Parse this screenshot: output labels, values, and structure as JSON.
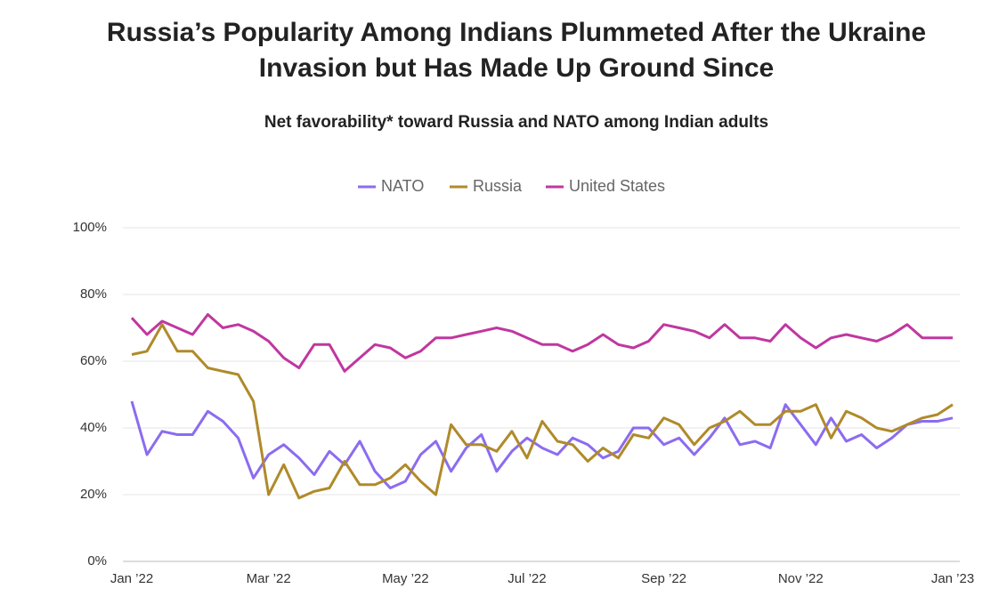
{
  "chart_data": {
    "type": "line",
    "title": [
      "Russia’s Popularity Among Indians Plummeted After the Ukraine",
      "Invasion but Has Made Up Ground Since"
    ],
    "subtitle": "Net favorability* toward Russia and NATO among Indian adults",
    "categories": [
      "Jan ’22",
      null,
      null,
      null,
      null,
      null,
      null,
      null,
      null,
      "Mar ’22",
      null,
      null,
      null,
      null,
      null,
      null,
      null,
      null,
      "May ’22",
      null,
      null,
      null,
      null,
      null,
      null,
      null,
      "Jul ’22",
      null,
      null,
      null,
      null,
      null,
      null,
      null,
      null,
      "Sep ’22",
      null,
      null,
      null,
      null,
      null,
      null,
      null,
      null,
      "Nov ’22",
      null,
      null,
      null,
      null,
      null,
      null,
      null,
      null,
      null,
      "Jan ’23"
    ],
    "series": [
      {
        "name": "NATO",
        "color": "#8b6cf0",
        "values": [
          48,
          32,
          39,
          38,
          38,
          45,
          42,
          37,
          25,
          32,
          35,
          31,
          26,
          33,
          29,
          36,
          27,
          22,
          24,
          32,
          36,
          27,
          34,
          38,
          27,
          33,
          37,
          34,
          32,
          37,
          35,
          31,
          33,
          40,
          40,
          35,
          37,
          32,
          37,
          43,
          35,
          36,
          34,
          47,
          41,
          35,
          43,
          36,
          38,
          34,
          37,
          41,
          42,
          42,
          43
        ]
      },
      {
        "name": "Russia",
        "color": "#b08a2a",
        "values": [
          62,
          63,
          71,
          63,
          63,
          58,
          57,
          56,
          48,
          20,
          29,
          19,
          21,
          22,
          30,
          23,
          23,
          25,
          29,
          24,
          20,
          41,
          35,
          35,
          33,
          39,
          31,
          42,
          36,
          35,
          30,
          34,
          31,
          38,
          37,
          43,
          41,
          35,
          40,
          42,
          45,
          41,
          41,
          45,
          45,
          47,
          37,
          45,
          43,
          40,
          39,
          41,
          43,
          44,
          47
        ]
      },
      {
        "name": "United States",
        "color": "#c0379f",
        "values": [
          73,
          68,
          72,
          70,
          68,
          74,
          70,
          71,
          69,
          66,
          61,
          58,
          65,
          65,
          57,
          61,
          65,
          64,
          61,
          63,
          67,
          67,
          68,
          69,
          70,
          69,
          67,
          65,
          65,
          63,
          65,
          68,
          65,
          64,
          66,
          71,
          70,
          69,
          67,
          71,
          67,
          67,
          66,
          71,
          67,
          64,
          67,
          68,
          67,
          66,
          68,
          71,
          67,
          67,
          67
        ]
      }
    ],
    "ylim": [
      0,
      100
    ],
    "yticks": [
      {
        "value": 0,
        "label": "0%"
      },
      {
        "value": 20,
        "label": "20%"
      },
      {
        "value": 40,
        "label": "40%"
      },
      {
        "value": 60,
        "label": "60%"
      },
      {
        "value": 80,
        "label": "80%"
      },
      {
        "value": 100,
        "label": "100%"
      }
    ],
    "grid": true
  }
}
